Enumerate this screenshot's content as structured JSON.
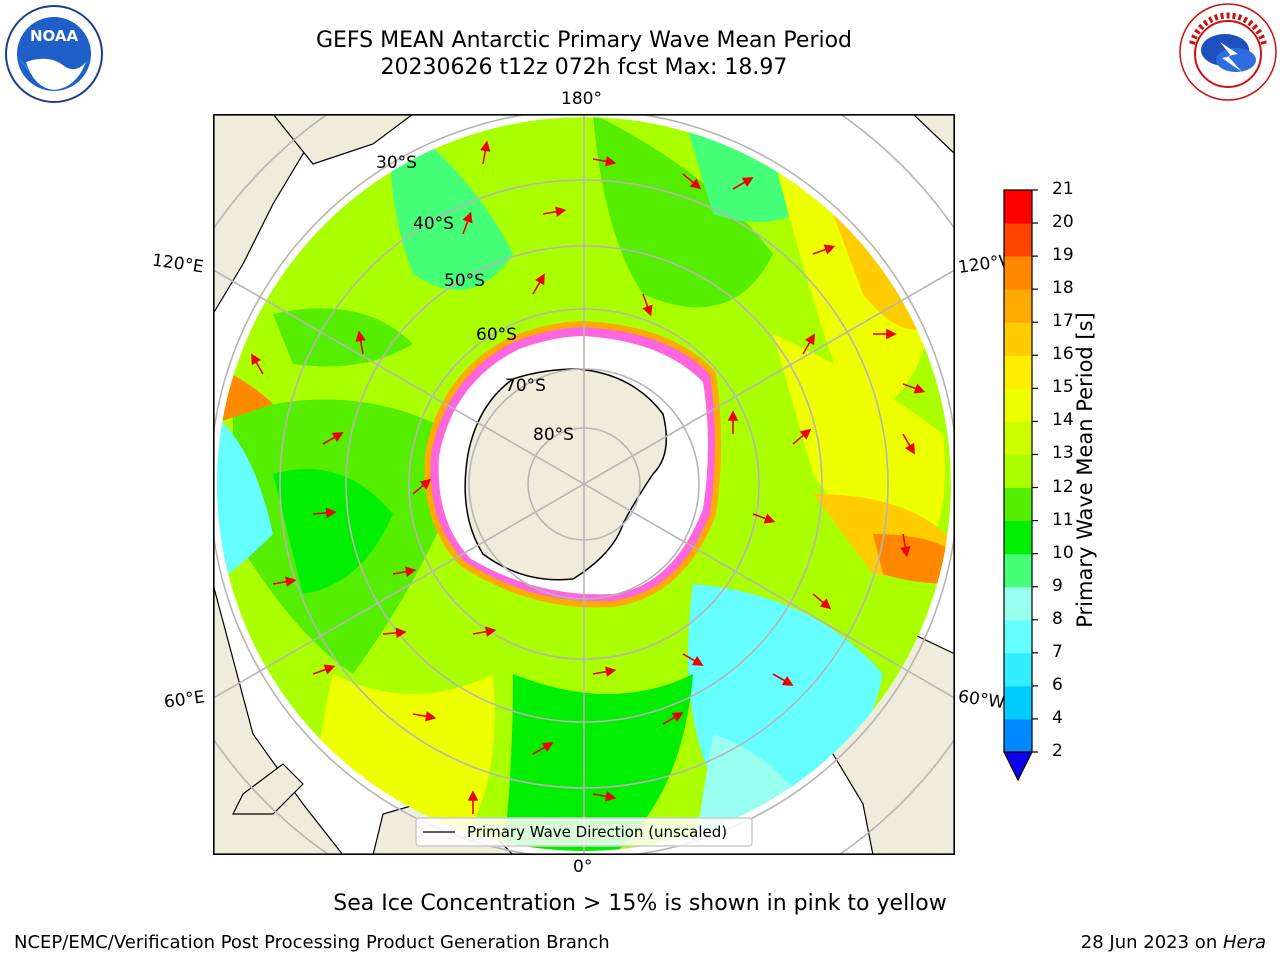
{
  "title_line1": "GEFS MEAN Antarctic Primary Wave Mean Period",
  "title_line2": "20230626 t12z 072h fcst   Max: 18.97",
  "caption": "Sea Ice Concentration > 15% is shown in pink to yellow",
  "footer_left": "NCEP/EMC/Verification Post Processing Product Generation Branch",
  "footer_right_prefix": "28 Jun 2023 on ",
  "footer_right_host": "Hera",
  "logos": {
    "noaa_text": "NOAA",
    "nws_text": "NATIONAL WEATHER SERVICE"
  },
  "map": {
    "lon_labels": {
      "top": "180°",
      "bottom": "0°",
      "upper_left": "120°E",
      "upper_right": "120°W",
      "lower_left": "60°E",
      "lower_right": "60°W"
    },
    "lat_labels": [
      "30°S",
      "40°S",
      "50°S",
      "60°S",
      "70°S",
      "80°S"
    ],
    "legend": "Primary Wave Direction (unscaled)"
  },
  "colorbar": {
    "label": "Primary Wave Mean Period [s]",
    "ticks": [
      "2",
      "4",
      "6",
      "7",
      "8",
      "9",
      "10",
      "11",
      "12",
      "13",
      "14",
      "15",
      "16",
      "17",
      "18",
      "19",
      "20",
      "21"
    ],
    "colors": [
      "#0044ff",
      "#0088ff",
      "#00ccff",
      "#33eeff",
      "#66ffff",
      "#99ffee",
      "#44ff77",
      "#00ee00",
      "#55ee00",
      "#aaff00",
      "#ccff00",
      "#eeff00",
      "#ffee00",
      "#ffcc00",
      "#ffaa00",
      "#ff8800",
      "#ff4400",
      "#ff0000"
    ],
    "extend_color": "#1100ee"
  },
  "chart_data": {
    "type": "heatmap",
    "title": "GEFS MEAN Antarctic Primary Wave Mean Period",
    "subtitle": "20230626 t12z 072h fcst   Max: 18.97",
    "value_label": "Primary Wave Mean Period [s]",
    "max": 18.97,
    "range": [
      2,
      21
    ],
    "levels": [
      2,
      4,
      6,
      7,
      8,
      9,
      10,
      11,
      12,
      13,
      14,
      15,
      16,
      17,
      18,
      19,
      20,
      21
    ],
    "projection": "south polar stereographic",
    "overlay": "Primary Wave Direction (unscaled)"
  }
}
